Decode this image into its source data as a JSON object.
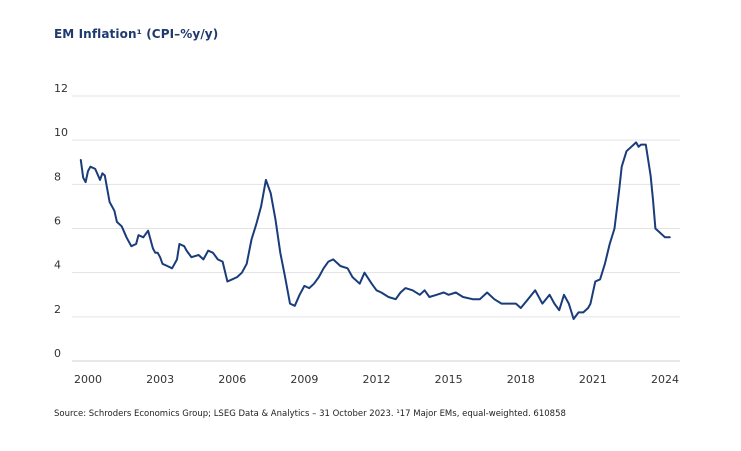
{
  "title": "EM Inflation¹ (CPI–%y/y)",
  "source": "Source: Schroders Economics Group; LSEG Data & Analytics – 31 October 2023. ¹17 Major EMs, equal-weighted. 610858",
  "colors": {
    "line": "#1a3c7a",
    "grid": "#e3e3e3",
    "title": "#1f3a6e"
  },
  "chart_data": {
    "type": "line",
    "title": "EM Inflation¹ (CPI–%y/y)",
    "xlabel": "",
    "ylabel": "",
    "xlim": [
      1999.7,
      2024.5
    ],
    "ylim": [
      0,
      12
    ],
    "grid": true,
    "yticks": [
      0,
      2,
      4,
      6,
      8,
      10,
      12
    ],
    "xticks": [
      {
        "value": 2000,
        "label": "2000"
      },
      {
        "value": 2003,
        "label": "2003"
      },
      {
        "value": 2006,
        "label": "2006"
      },
      {
        "value": 2009,
        "label": "2009"
      },
      {
        "value": 2012,
        "label": "2012"
      },
      {
        "value": 2015,
        "label": "2015"
      },
      {
        "value": 2018,
        "label": "2018"
      },
      {
        "value": 2021,
        "label": "2021"
      },
      {
        "value": 2024,
        "label": "2024"
      }
    ],
    "series": [
      {
        "name": "EM Inflation",
        "x": [
          1999.7,
          1999.8,
          1999.9,
          2000.0,
          2000.1,
          2000.3,
          2000.5,
          2000.6,
          2000.7,
          2000.8,
          2000.9,
          2001.1,
          2001.2,
          2001.4,
          2001.6,
          2001.8,
          2002.0,
          2002.1,
          2002.3,
          2002.5,
          2002.6,
          2002.7,
          2002.8,
          2002.9,
          2003.0,
          2003.1,
          2003.3,
          2003.5,
          2003.7,
          2003.8,
          2004.0,
          2004.1,
          2004.3,
          2004.6,
          2004.8,
          2005.0,
          2005.2,
          2005.4,
          2005.6,
          2005.8,
          2006.0,
          2006.2,
          2006.4,
          2006.6,
          2006.8,
          2007.0,
          2007.2,
          2007.4,
          2007.6,
          2007.8,
          2008.0,
          2008.2,
          2008.4,
          2008.6,
          2008.8,
          2009.0,
          2009.2,
          2009.4,
          2009.6,
          2009.8,
          2010.0,
          2010.2,
          2010.5,
          2010.8,
          2011.0,
          2011.3,
          2011.5,
          2011.8,
          2012.0,
          2012.2,
          2012.5,
          2012.8,
          2013.0,
          2013.2,
          2013.5,
          2013.8,
          2014.0,
          2014.2,
          2014.5,
          2014.8,
          2015.0,
          2015.3,
          2015.6,
          2016.0,
          2016.3,
          2016.6,
          2016.9,
          2017.2,
          2017.5,
          2017.8,
          2018.0,
          2018.3,
          2018.6,
          2018.9,
          2019.2,
          2019.4,
          2019.6,
          2019.8,
          2020.0,
          2020.2,
          2020.4,
          2020.6,
          2020.8,
          2020.9,
          2021.1,
          2021.3,
          2021.5,
          2021.7,
          2021.9,
          2022.1,
          2022.2,
          2022.4,
          2022.6,
          2022.8,
          2022.9,
          2023.0,
          2023.2,
          2023.4,
          2023.5,
          2023.6,
          2023.8,
          2024.0,
          2024.2
        ],
        "values": [
          9.1,
          8.3,
          8.1,
          8.6,
          8.8,
          8.7,
          8.2,
          8.5,
          8.4,
          7.8,
          7.2,
          6.8,
          6.3,
          6.1,
          5.6,
          5.2,
          5.3,
          5.7,
          5.6,
          5.9,
          5.5,
          5.1,
          4.9,
          4.9,
          4.7,
          4.4,
          4.3,
          4.2,
          4.6,
          5.3,
          5.2,
          5.0,
          4.7,
          4.8,
          4.6,
          5.0,
          4.9,
          4.6,
          4.5,
          3.6,
          3.7,
          3.8,
          4.0,
          4.4,
          5.5,
          6.2,
          7.0,
          8.2,
          7.6,
          6.4,
          4.9,
          3.8,
          2.6,
          2.5,
          3.0,
          3.4,
          3.3,
          3.5,
          3.8,
          4.2,
          4.5,
          4.6,
          4.3,
          4.2,
          3.8,
          3.5,
          4.0,
          3.5,
          3.2,
          3.1,
          2.9,
          2.8,
          3.1,
          3.3,
          3.2,
          3.0,
          3.2,
          2.9,
          3.0,
          3.1,
          3.0,
          3.1,
          2.9,
          2.8,
          2.8,
          3.1,
          2.8,
          2.6,
          2.6,
          2.6,
          2.4,
          2.8,
          3.2,
          2.6,
          3.0,
          2.6,
          2.3,
          3.0,
          2.6,
          1.9,
          2.2,
          2.2,
          2.4,
          2.6,
          3.6,
          3.7,
          4.4,
          5.3,
          6.0,
          7.8,
          8.8,
          9.5,
          9.7,
          9.9,
          9.7,
          9.8,
          9.8,
          8.4,
          7.3,
          6.0,
          5.8,
          5.6,
          5.6
        ]
      }
    ]
  }
}
